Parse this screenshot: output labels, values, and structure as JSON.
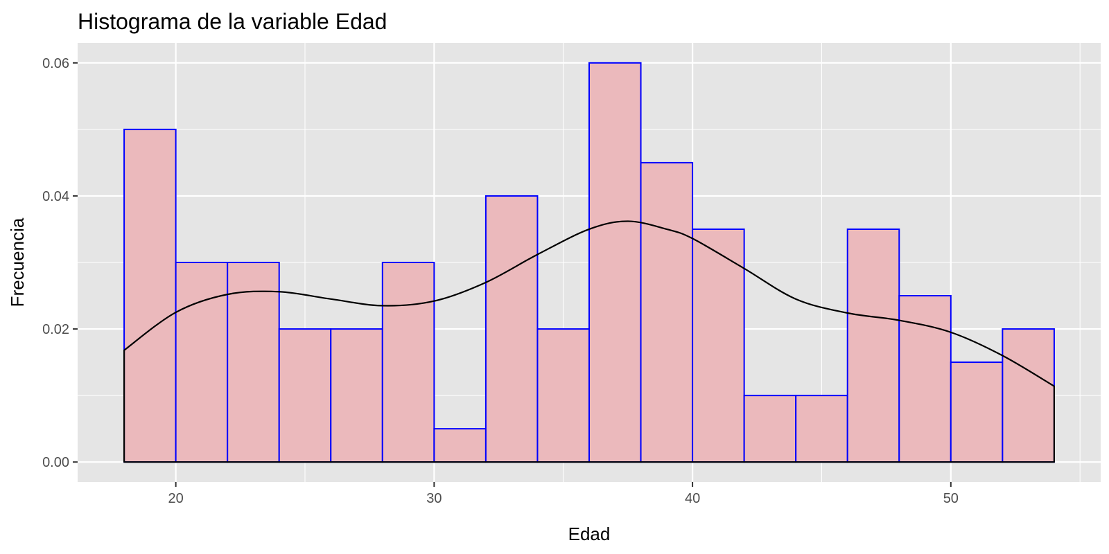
{
  "chart_data": {
    "type": "bar",
    "title": "Histograma de la variable Edad",
    "xlabel": "Edad",
    "ylabel": "Frecuencia",
    "xlim": [
      16.2,
      55.8
    ],
    "ylim": [
      -0.003,
      0.063
    ],
    "x_ticks": [
      20,
      30,
      40,
      50
    ],
    "y_ticks": [
      0.0,
      0.02,
      0.04,
      0.06
    ],
    "y_tick_labels": [
      "0.00",
      "0.02",
      "0.04",
      "0.06"
    ],
    "grid": true,
    "legend": "none",
    "bin_width": 2,
    "bins": [
      {
        "start": 18,
        "end": 20,
        "density": 0.05
      },
      {
        "start": 20,
        "end": 22,
        "density": 0.03
      },
      {
        "start": 22,
        "end": 24,
        "density": 0.03
      },
      {
        "start": 24,
        "end": 26,
        "density": 0.02
      },
      {
        "start": 26,
        "end": 28,
        "density": 0.02
      },
      {
        "start": 28,
        "end": 30,
        "density": 0.03
      },
      {
        "start": 30,
        "end": 32,
        "density": 0.005
      },
      {
        "start": 32,
        "end": 34,
        "density": 0.04
      },
      {
        "start": 34,
        "end": 36,
        "density": 0.02
      },
      {
        "start": 36,
        "end": 38,
        "density": 0.06
      },
      {
        "start": 38,
        "end": 40,
        "density": 0.045
      },
      {
        "start": 40,
        "end": 42,
        "density": 0.035
      },
      {
        "start": 42,
        "end": 44,
        "density": 0.01
      },
      {
        "start": 44,
        "end": 46,
        "density": 0.01
      },
      {
        "start": 46,
        "end": 48,
        "density": 0.035
      },
      {
        "start": 48,
        "end": 50,
        "density": 0.025
      },
      {
        "start": 50,
        "end": 52,
        "density": 0.015
      },
      {
        "start": 52,
        "end": 54,
        "density": 0.02
      }
    ],
    "density_curve": {
      "x": [
        18,
        20,
        22,
        24,
        26,
        28,
        30,
        32,
        34,
        36,
        37.5,
        39,
        40,
        42,
        44,
        46,
        48,
        50,
        52,
        54
      ],
      "y": [
        0.0168,
        0.0225,
        0.0252,
        0.0256,
        0.0245,
        0.0235,
        0.0242,
        0.027,
        0.0312,
        0.035,
        0.0362,
        0.035,
        0.0336,
        0.0291,
        0.0245,
        0.0224,
        0.0213,
        0.0195,
        0.016,
        0.0114
      ]
    },
    "colors": {
      "bar_fill": "#ebb9bc",
      "bar_outline": "#0000ff",
      "curve": "#000000",
      "panel_background": "#e5e5e5",
      "grid": "#ffffff"
    }
  }
}
